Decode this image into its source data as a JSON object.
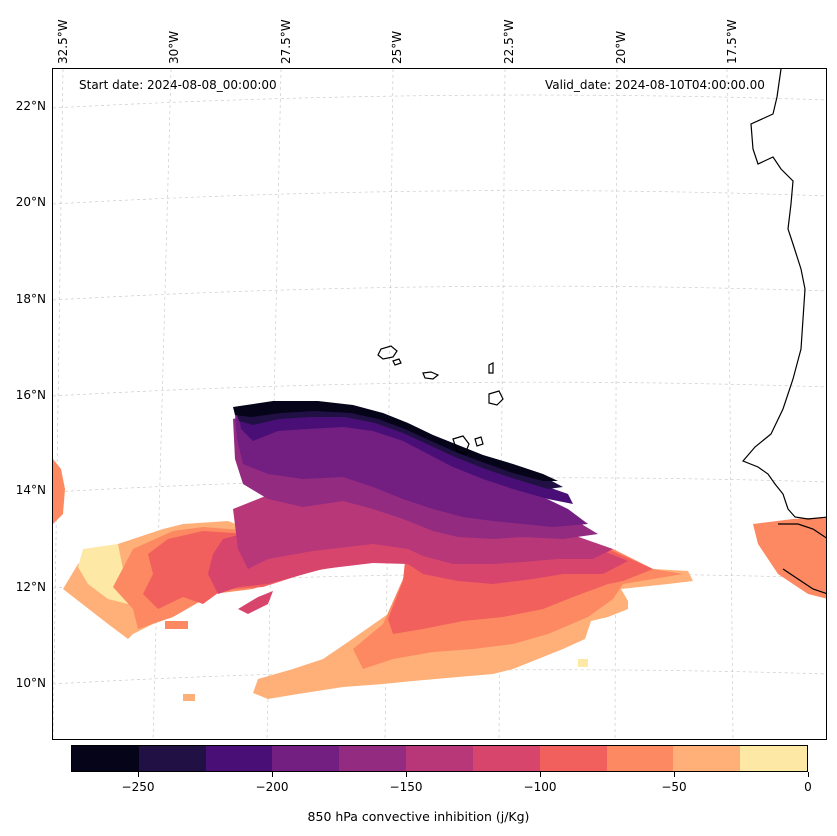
{
  "header": {
    "start_date": "Start date: 2024-08-08_00:00:00",
    "valid_date": "Valid_date: 2024-08-10T04:00:00.00"
  },
  "axes": {
    "longitude_labels": [
      "32.5°W",
      "30°W",
      "27.5°W",
      "25°W",
      "22.5°W",
      "20°W",
      "17.5°W"
    ],
    "latitude_labels": [
      "22°N",
      "20°N",
      "18°N",
      "16°N",
      "14°N",
      "12°N",
      "10°N"
    ],
    "gridlines": true
  },
  "colorbar": {
    "title": "850 hPa convective inhibition (j/Kg)",
    "tick_labels": [
      "−250",
      "−200",
      "−150",
      "−100",
      "−50",
      "0"
    ],
    "levels": [
      -275,
      -250,
      -225,
      -200,
      -175,
      -150,
      -125,
      -100,
      -75,
      -50,
      -25,
      0
    ],
    "colors": [
      "#050418",
      "#211044",
      "#4a0f76",
      "#721f81",
      "#932b80",
      "#b73779",
      "#d8456c",
      "#f1605d",
      "#fc8961",
      "#feb078",
      "#fde8a5"
    ]
  },
  "map": {
    "colormap": "magma",
    "coastline_color": "#000000",
    "field_levels_shown": [
      -262.5,
      -237.5,
      -212.5,
      -187.5,
      -162.5,
      -137.5,
      -112.5,
      -87.5,
      -62.5,
      -37.5,
      -12.5
    ]
  }
}
